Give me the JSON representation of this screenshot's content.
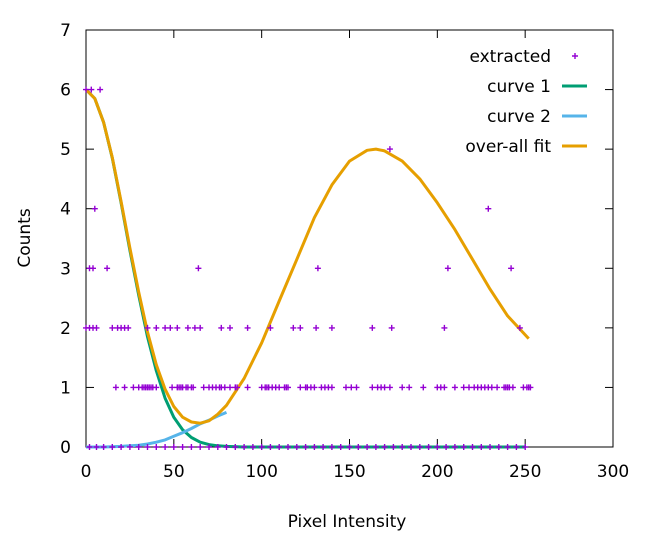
{
  "chart_data": {
    "type": "scatter",
    "xlabel": "Pixel Intensity",
    "ylabel": "Counts",
    "xlim": [
      0,
      300
    ],
    "ylim": [
      0,
      7
    ],
    "x_ticks": [
      0,
      50,
      100,
      150,
      200,
      250,
      300
    ],
    "y_ticks": [
      0,
      1,
      2,
      3,
      4,
      5,
      6,
      7
    ],
    "grid": false,
    "legend_position": "top-right",
    "series": [
      {
        "name": "extracted",
        "kind": "points",
        "marker": "plus",
        "color": "#9400d3",
        "points": [
          [
            0,
            6
          ],
          [
            3,
            6
          ],
          [
            8,
            6
          ],
          [
            5,
            4
          ],
          [
            2,
            3
          ],
          [
            4,
            3
          ],
          [
            12,
            3
          ],
          [
            0,
            2
          ],
          [
            2,
            2
          ],
          [
            4,
            2
          ],
          [
            6,
            2
          ],
          [
            15,
            2
          ],
          [
            18,
            2
          ],
          [
            20,
            2
          ],
          [
            22,
            2
          ],
          [
            24,
            2
          ],
          [
            35,
            2
          ],
          [
            40,
            2
          ],
          [
            45,
            2
          ],
          [
            48,
            2
          ],
          [
            52,
            2
          ],
          [
            58,
            2
          ],
          [
            62,
            2
          ],
          [
            65,
            2
          ],
          [
            77,
            2
          ],
          [
            82,
            2
          ],
          [
            92,
            2
          ],
          [
            105,
            2
          ],
          [
            118,
            2
          ],
          [
            122,
            2
          ],
          [
            131,
            2
          ],
          [
            140,
            2
          ],
          [
            163,
            2
          ],
          [
            174,
            2
          ],
          [
            204,
            2
          ],
          [
            247,
            2
          ],
          [
            17,
            1
          ],
          [
            22,
            1
          ],
          [
            27,
            1
          ],
          [
            30,
            1
          ],
          [
            32,
            1
          ],
          [
            33,
            1
          ],
          [
            34,
            1
          ],
          [
            35,
            1
          ],
          [
            36,
            1
          ],
          [
            37,
            1
          ],
          [
            38,
            1
          ],
          [
            40,
            1
          ],
          [
            49,
            1
          ],
          [
            52,
            1
          ],
          [
            53,
            1
          ],
          [
            54,
            1
          ],
          [
            55,
            1
          ],
          [
            57,
            1
          ],
          [
            58,
            1
          ],
          [
            60,
            1
          ],
          [
            61,
            1
          ],
          [
            67,
            1
          ],
          [
            70,
            1
          ],
          [
            72,
            1
          ],
          [
            74,
            1
          ],
          [
            76,
            1
          ],
          [
            77,
            1
          ],
          [
            79,
            1
          ],
          [
            82,
            1
          ],
          [
            85,
            1
          ],
          [
            86,
            1
          ],
          [
            92,
            1
          ],
          [
            100,
            1
          ],
          [
            102,
            1
          ],
          [
            103,
            1
          ],
          [
            104,
            1
          ],
          [
            106,
            1
          ],
          [
            108,
            1
          ],
          [
            110,
            1
          ],
          [
            113,
            1
          ],
          [
            114,
            1
          ],
          [
            115,
            1
          ],
          [
            122,
            1
          ],
          [
            125,
            1
          ],
          [
            126,
            1
          ],
          [
            128,
            1
          ],
          [
            130,
            1
          ],
          [
            134,
            1
          ],
          [
            136,
            1
          ],
          [
            138,
            1
          ],
          [
            140,
            1
          ],
          [
            148,
            1
          ],
          [
            151,
            1
          ],
          [
            154,
            1
          ],
          [
            163,
            1
          ],
          [
            166,
            1
          ],
          [
            168,
            1
          ],
          [
            170,
            1
          ],
          [
            173,
            1
          ],
          [
            180,
            1
          ],
          [
            184,
            1
          ],
          [
            192,
            1
          ],
          [
            200,
            1
          ],
          [
            202,
            1
          ],
          [
            204,
            1
          ],
          [
            210,
            1
          ],
          [
            215,
            1
          ],
          [
            218,
            1
          ],
          [
            221,
            1
          ],
          [
            223,
            1
          ],
          [
            225,
            1
          ],
          [
            227,
            1
          ],
          [
            229,
            1
          ],
          [
            231,
            1
          ],
          [
            234,
            1
          ],
          [
            238,
            1
          ],
          [
            239,
            1
          ],
          [
            240,
            1
          ],
          [
            241,
            1
          ],
          [
            243,
            1
          ],
          [
            249,
            1
          ],
          [
            251,
            1
          ],
          [
            252,
            1
          ],
          [
            253,
            1
          ],
          [
            2,
            0
          ],
          [
            6,
            0
          ],
          [
            10,
            0
          ],
          [
            15,
            0
          ],
          [
            20,
            0
          ],
          [
            25,
            0
          ],
          [
            30,
            0
          ],
          [
            35,
            0
          ],
          [
            40,
            0
          ],
          [
            45,
            0
          ],
          [
            50,
            0
          ],
          [
            55,
            0
          ],
          [
            60,
            0
          ],
          [
            65,
            0
          ],
          [
            70,
            0
          ],
          [
            75,
            0
          ],
          [
            80,
            0
          ],
          [
            85,
            0
          ],
          [
            90,
            0
          ],
          [
            95,
            0
          ],
          [
            100,
            0
          ],
          [
            105,
            0
          ],
          [
            110,
            0
          ],
          [
            115,
            0
          ],
          [
            120,
            0
          ],
          [
            125,
            0
          ],
          [
            130,
            0
          ],
          [
            135,
            0
          ],
          [
            140,
            0
          ],
          [
            145,
            0
          ],
          [
            150,
            0
          ],
          [
            155,
            0
          ],
          [
            160,
            0
          ],
          [
            165,
            0
          ],
          [
            170,
            0
          ],
          [
            175,
            0
          ],
          [
            180,
            0
          ],
          [
            185,
            0
          ],
          [
            190,
            0
          ],
          [
            195,
            0
          ],
          [
            200,
            0
          ],
          [
            205,
            0
          ],
          [
            210,
            0
          ],
          [
            215,
            0
          ],
          [
            220,
            0
          ],
          [
            225,
            0
          ],
          [
            230,
            0
          ],
          [
            235,
            0
          ],
          [
            240,
            0
          ],
          [
            245,
            0
          ],
          [
            250,
            0
          ],
          [
            132,
            3
          ],
          [
            206,
            3
          ],
          [
            242,
            3
          ],
          [
            229,
            4
          ],
          [
            173,
            5
          ],
          [
            64,
            3
          ]
        ]
      },
      {
        "name": "curve 1",
        "kind": "line",
        "color": "#009e73",
        "x": [
          0,
          5,
          10,
          15,
          20,
          25,
          30,
          35,
          40,
          45,
          50,
          55,
          60,
          65,
          70,
          75,
          80,
          90,
          100,
          120,
          150,
          200,
          250
        ],
        "y": [
          6.0,
          5.85,
          5.45,
          4.85,
          4.1,
          3.3,
          2.55,
          1.85,
          1.28,
          0.82,
          0.5,
          0.29,
          0.16,
          0.08,
          0.04,
          0.02,
          0.01,
          0.0,
          0.0,
          0.0,
          0.0,
          0.0,
          0.0
        ]
      },
      {
        "name": "curve 2",
        "kind": "line",
        "color": "#56b4e9",
        "x": [
          0,
          10,
          20,
          30,
          35,
          40,
          45,
          50,
          55,
          60,
          65,
          70,
          75,
          80
        ],
        "y": [
          0.0,
          0.0,
          0.01,
          0.03,
          0.05,
          0.08,
          0.12,
          0.18,
          0.24,
          0.31,
          0.39,
          0.45,
          0.52,
          0.58
        ]
      },
      {
        "name": "over-all fit",
        "kind": "line",
        "color": "#e69f00",
        "x": [
          0,
          5,
          10,
          15,
          20,
          25,
          30,
          35,
          40,
          45,
          50,
          55,
          60,
          65,
          70,
          75,
          80,
          90,
          100,
          110,
          120,
          130,
          140,
          150,
          160,
          165,
          170,
          180,
          190,
          200,
          210,
          220,
          230,
          240,
          252
        ],
        "y": [
          6.0,
          5.85,
          5.45,
          4.86,
          4.12,
          3.34,
          2.6,
          1.93,
          1.38,
          0.97,
          0.68,
          0.5,
          0.42,
          0.4,
          0.44,
          0.55,
          0.7,
          1.15,
          1.75,
          2.45,
          3.15,
          3.85,
          4.4,
          4.8,
          4.98,
          5.0,
          4.97,
          4.8,
          4.5,
          4.1,
          3.65,
          3.15,
          2.65,
          2.2,
          1.82
        ]
      }
    ]
  }
}
